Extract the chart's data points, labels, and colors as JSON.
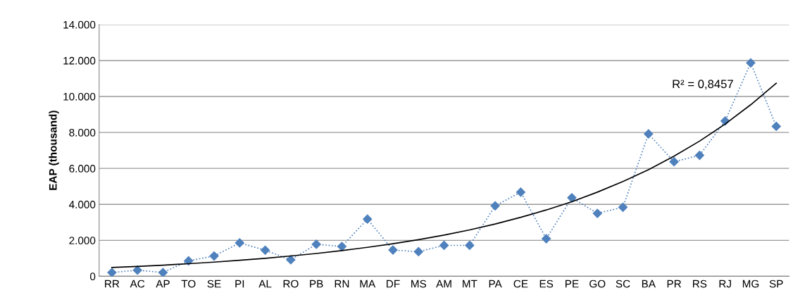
{
  "chart_data": {
    "type": "line",
    "ylabel": "EAP (thousand)",
    "categories": [
      "RR",
      "AC",
      "AP",
      "TO",
      "SE",
      "PI",
      "AL",
      "RO",
      "PB",
      "RN",
      "MA",
      "DF",
      "MS",
      "AM",
      "MT",
      "PA",
      "CE",
      "ES",
      "PE",
      "GO",
      "SC",
      "BA",
      "PR",
      "RS",
      "RJ",
      "MG",
      "SP"
    ],
    "series": [
      {
        "color": "#4f81bd",
        "marker": "diamond",
        "line_style": "dotted",
        "values": [
          210,
          340,
          210,
          860,
          1130,
          1860,
          1450,
          920,
          1780,
          1660,
          3180,
          1460,
          1370,
          1720,
          1720,
          3920,
          4680,
          2090,
          4370,
          3500,
          3840,
          7920,
          6370,
          6730,
          8640,
          11870,
          8340
        ]
      },
      {
        "color": "#000000",
        "marker": "none",
        "line_style": "solid",
        "values": [
          490,
          550,
          620,
          700,
          790,
          890,
          1000,
          1130,
          1270,
          1430,
          1610,
          1810,
          2040,
          2290,
          2580,
          2910,
          3280,
          3690,
          4150,
          4680,
          5270,
          5930,
          6680,
          7520,
          8470,
          9540,
          10740
        ]
      }
    ],
    "ylim": [
      0,
      14000
    ],
    "yticks": [
      {
        "value": 0,
        "label": "0"
      },
      {
        "value": 2000,
        "label": "2.000"
      },
      {
        "value": 4000,
        "label": "4.000"
      },
      {
        "value": 6000,
        "label": "6.000"
      },
      {
        "value": 8000,
        "label": "8.000"
      },
      {
        "value": 10000,
        "label": "10.000"
      },
      {
        "value": 12000,
        "label": "12.000"
      },
      {
        "value": 14000,
        "label": "14.000"
      }
    ],
    "annotations": [
      "R² = 0,8457"
    ],
    "grid": "y",
    "legend": false
  }
}
